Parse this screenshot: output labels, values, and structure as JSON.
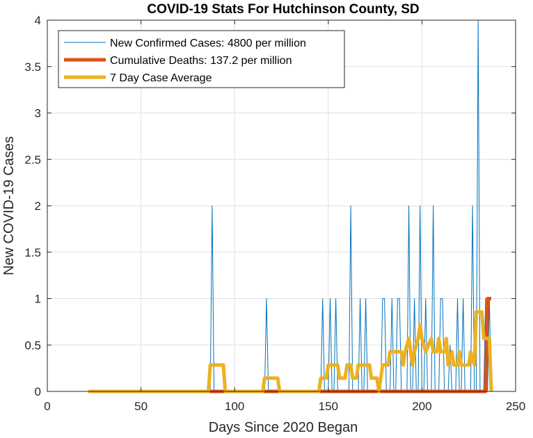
{
  "chart_data": {
    "type": "line",
    "title": "COVID-19 Stats For Hutchinson County, SD",
    "xlabel": "Days Since 2020 Began",
    "ylabel": "New COVID-19 Cases",
    "xlim": [
      0,
      250
    ],
    "ylim": [
      0,
      4
    ],
    "xticks": [
      0,
      50,
      100,
      150,
      200,
      250
    ],
    "yticks": [
      0,
      0.5,
      1,
      1.5,
      2,
      2.5,
      3,
      3.5,
      4
    ],
    "xtick_labels": [
      "0",
      "50",
      "100",
      "150",
      "200",
      "250"
    ],
    "ytick_labels": [
      "0",
      "0.5",
      "1",
      "1.5",
      "2",
      "2.5",
      "3",
      "3.5",
      "4"
    ],
    "grid": true,
    "legend_position": "top-left",
    "colors": {
      "new_cases": "#0072BD",
      "deaths": "#D95319",
      "avg": "#EDB120"
    },
    "series": [
      {
        "name": "New Confirmed Cases: 4800 per million",
        "points": [
          [
            22,
            0
          ],
          [
            87,
            0
          ],
          [
            88,
            2
          ],
          [
            89,
            0
          ],
          [
            116,
            0
          ],
          [
            117,
            1
          ],
          [
            118,
            0
          ],
          [
            146,
            0
          ],
          [
            147,
            1
          ],
          [
            148,
            0
          ],
          [
            150,
            0
          ],
          [
            151,
            1
          ],
          [
            152,
            0
          ],
          [
            153,
            0
          ],
          [
            154,
            1
          ],
          [
            155,
            0
          ],
          [
            161,
            0
          ],
          [
            162,
            2
          ],
          [
            163,
            0
          ],
          [
            166,
            0
          ],
          [
            167,
            1
          ],
          [
            168,
            0
          ],
          [
            169,
            0
          ],
          [
            170,
            1
          ],
          [
            171,
            0
          ],
          [
            178,
            0
          ],
          [
            179,
            1
          ],
          [
            180,
            1
          ],
          [
            181,
            0
          ],
          [
            183,
            0
          ],
          [
            184,
            1
          ],
          [
            185,
            0
          ],
          [
            186,
            0
          ],
          [
            187,
            1
          ],
          [
            188,
            1
          ],
          [
            189,
            0
          ],
          [
            192,
            0
          ],
          [
            193,
            2
          ],
          [
            194,
            0
          ],
          [
            195,
            0
          ],
          [
            196,
            1
          ],
          [
            197,
            0
          ],
          [
            198,
            0
          ],
          [
            199,
            2
          ],
          [
            200,
            0
          ],
          [
            201,
            0
          ],
          [
            202,
            1
          ],
          [
            203,
            0
          ],
          [
            205,
            0
          ],
          [
            206,
            2
          ],
          [
            207,
            0
          ],
          [
            209,
            0
          ],
          [
            210,
            1
          ],
          [
            211,
            1
          ],
          [
            212,
            0
          ],
          [
            214,
            0
          ],
          [
            215,
            0.5
          ],
          [
            216,
            0
          ],
          [
            218,
            0
          ],
          [
            219,
            1
          ],
          [
            220,
            0
          ],
          [
            221,
            0
          ],
          [
            222,
            1
          ],
          [
            223,
            0
          ],
          [
            226,
            0
          ],
          [
            227,
            2
          ],
          [
            228,
            0
          ],
          [
            229,
            0
          ],
          [
            230,
            4
          ],
          [
            231,
            0
          ],
          [
            233,
            0
          ],
          [
            234,
            1
          ],
          [
            235,
            0
          ],
          [
            236,
            1
          ],
          [
            237,
            0
          ]
        ]
      },
      {
        "name": "Cumulative Deaths: 137.2 per million",
        "points": [
          [
            22,
            0
          ],
          [
            234,
            0
          ],
          [
            235,
            1
          ],
          [
            237,
            1
          ]
        ]
      },
      {
        "name": "7 Day Case Average",
        "points": [
          [
            22,
            0
          ],
          [
            86,
            0
          ],
          [
            87,
            0.285
          ],
          [
            94,
            0.285
          ],
          [
            95,
            0
          ],
          [
            115,
            0
          ],
          [
            116,
            0.143
          ],
          [
            123,
            0.143
          ],
          [
            124,
            0
          ],
          [
            145,
            0
          ],
          [
            146,
            0.143
          ],
          [
            149,
            0.143
          ],
          [
            150,
            0.285
          ],
          [
            155,
            0.285
          ],
          [
            156,
            0.143
          ],
          [
            159,
            0.143
          ],
          [
            160,
            0.285
          ],
          [
            162,
            0.285
          ],
          [
            163,
            0.143
          ],
          [
            165,
            0.143
          ],
          [
            166,
            0.285
          ],
          [
            172,
            0.285
          ],
          [
            173,
            0.143
          ],
          [
            176,
            0.143
          ],
          [
            177,
            0
          ],
          [
            178,
            0.143
          ],
          [
            179,
            0.285
          ],
          [
            182,
            0.285
          ],
          [
            183,
            0.428
          ],
          [
            189,
            0.428
          ],
          [
            190,
            0.285
          ],
          [
            191,
            0.428
          ],
          [
            193,
            0.571
          ],
          [
            194,
            0.428
          ],
          [
            195,
            0.285
          ],
          [
            196,
            0.428
          ],
          [
            198,
            0.571
          ],
          [
            199,
            0.714
          ],
          [
            200,
            0.571
          ],
          [
            202,
            0.428
          ],
          [
            205,
            0.571
          ],
          [
            206,
            0.428
          ],
          [
            208,
            0.428
          ],
          [
            209,
            0.571
          ],
          [
            210,
            0.428
          ],
          [
            212,
            0.428
          ],
          [
            213,
            0.571
          ],
          [
            214,
            0.285
          ],
          [
            216,
            0.428
          ],
          [
            217,
            0.285
          ],
          [
            219,
            0.285
          ],
          [
            220,
            0.428
          ],
          [
            221,
            0.285
          ],
          [
            225,
            0.285
          ],
          [
            226,
            0.428
          ],
          [
            228,
            0.285
          ],
          [
            229,
            0.857
          ],
          [
            232,
            0.857
          ],
          [
            233,
            0.571
          ],
          [
            236,
            0.571
          ],
          [
            237,
            0
          ]
        ]
      }
    ]
  }
}
